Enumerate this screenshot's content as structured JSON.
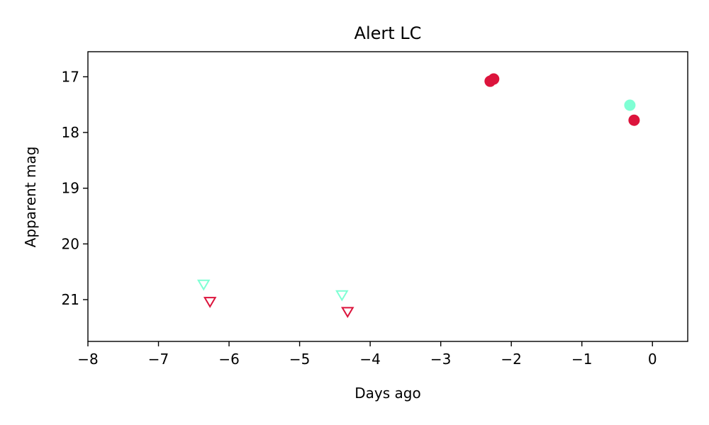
{
  "chart_data": {
    "type": "scatter",
    "title": "Alert LC",
    "xlabel": "Days ago",
    "ylabel": "Apparent mag",
    "xlim": [
      -8,
      0.5
    ],
    "ylim": [
      21.75,
      16.55
    ],
    "y_inverted": true,
    "grid": false,
    "xticks": [
      -8,
      -7,
      -6,
      -5,
      -4,
      -3,
      -2,
      -1,
      0
    ],
    "xtick_labels": [
      "−8",
      "−7",
      "−6",
      "−5",
      "−4",
      "−3",
      "−2",
      "−1",
      "0"
    ],
    "yticks": [
      17,
      18,
      19,
      20,
      21
    ],
    "ytick_labels": [
      "17",
      "18",
      "19",
      "20",
      "21"
    ],
    "series": [
      {
        "marker": "filled-circle",
        "color": "#dc143c",
        "points": [
          {
            "x": -2.3,
            "y": 17.08
          },
          {
            "x": -2.25,
            "y": 17.04
          },
          {
            "x": -0.26,
            "y": 17.78
          }
        ]
      },
      {
        "marker": "filled-circle",
        "color": "#7fffd4",
        "points": [
          {
            "x": -0.32,
            "y": 17.51
          }
        ]
      },
      {
        "marker": "open-triangle-down",
        "color": "#dc143c",
        "points": [
          {
            "x": -6.27,
            "y": 21.04
          },
          {
            "x": -4.32,
            "y": 21.22
          }
        ]
      },
      {
        "marker": "open-triangle-down",
        "color": "#7fffd4",
        "points": [
          {
            "x": -6.36,
            "y": 20.73
          },
          {
            "x": -4.4,
            "y": 20.92
          }
        ]
      }
    ]
  }
}
